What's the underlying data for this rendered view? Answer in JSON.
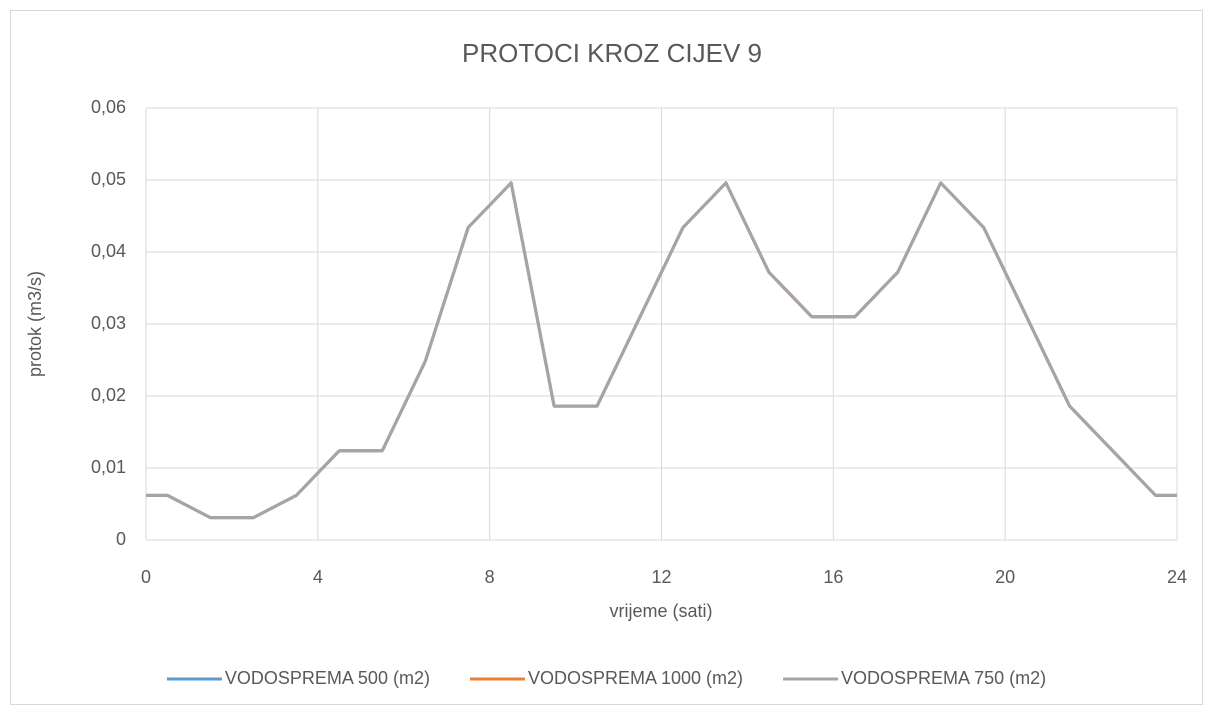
{
  "chart_data": {
    "type": "line",
    "title": "PROTOCI KROZ CIJEV 9",
    "x_label": "vrijeme (sati)",
    "y_label": "protok (m3/s)",
    "x": [
      0,
      0.5,
      1.5,
      2.5,
      3.5,
      4.5,
      5.5,
      6.5,
      7.5,
      8.5,
      9.5,
      10.5,
      11.5,
      12.5,
      13.5,
      14.5,
      15.5,
      16.5,
      17.5,
      18.5,
      19.5,
      20.5,
      21.5,
      22.5,
      23.5,
      24
    ],
    "series": [
      {
        "name": "VODOSPREMA 500 (m2)",
        "color": "#5b9bd5",
        "values": [
          0.0062,
          0.0062,
          0.0031,
          0.0031,
          0.0062,
          0.0124,
          0.0124,
          0.0248,
          0.0434,
          0.0496,
          0.0186,
          0.0186,
          0.031,
          0.0434,
          0.0496,
          0.0372,
          0.031,
          0.031,
          0.0372,
          0.0496,
          0.0434,
          0.031,
          0.0186,
          0.0124,
          0.0062,
          0.0062
        ]
      },
      {
        "name": "VODOSPREMA 1000 (m2)",
        "color": "#ed7d31",
        "values": [
          0.0062,
          0.0062,
          0.0031,
          0.0031,
          0.0062,
          0.0124,
          0.0124,
          0.0248,
          0.0434,
          0.0496,
          0.0186,
          0.0186,
          0.031,
          0.0434,
          0.0496,
          0.0372,
          0.031,
          0.031,
          0.0372,
          0.0496,
          0.0434,
          0.031,
          0.0186,
          0.0124,
          0.0062,
          0.0062
        ]
      },
      {
        "name": "VODOSPREMA 750 (m2)",
        "color": "#a5a5a5",
        "values": [
          0.0062,
          0.0062,
          0.0031,
          0.0031,
          0.0062,
          0.0124,
          0.0124,
          0.0248,
          0.0434,
          0.0496,
          0.0186,
          0.0186,
          0.031,
          0.0434,
          0.0496,
          0.0372,
          0.031,
          0.031,
          0.0372,
          0.0496,
          0.0434,
          0.031,
          0.0186,
          0.0124,
          0.0062,
          0.0062
        ]
      }
    ],
    "xlim": [
      0,
      24
    ],
    "xticks": [
      0,
      4,
      8,
      12,
      16,
      20,
      24
    ],
    "ylim": [
      0,
      0.06
    ],
    "yticks": [
      0,
      {
        "value": 0.01,
        "label": "0,01"
      },
      {
        "value": 0.02,
        "label": "0,02"
      },
      {
        "value": 0.03,
        "label": "0,03"
      },
      {
        "value": 0.04,
        "label": "0,04"
      },
      {
        "value": 0.05,
        "label": "0,05"
      },
      {
        "value": 0.06,
        "label": "0,06"
      }
    ],
    "grid": true,
    "legend": "bottom"
  }
}
